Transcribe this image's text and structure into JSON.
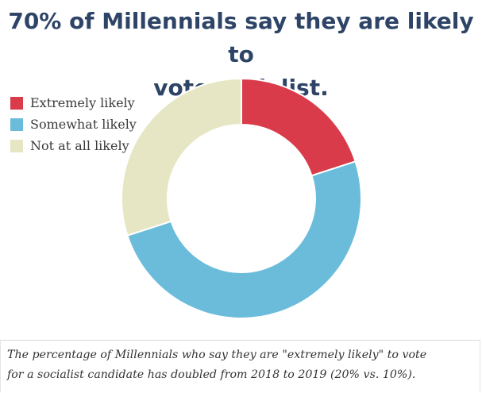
{
  "header": {
    "title_line1": "70% of Millennials say they are likely to",
    "title_line2": "vote socialist."
  },
  "chart_data": {
    "type": "pie",
    "variant": "donut",
    "categories": [
      "Extremely likely",
      "Somewhat likely",
      "Not at all likely"
    ],
    "values": [
      20,
      50,
      30
    ],
    "colors": [
      "#d93b4b",
      "#6bbcdb",
      "#e6e6c4"
    ],
    "legend_position": "top-left"
  },
  "caption": {
    "line1": "The percentage of Millennials who say they are \"extremely likely\" to vote",
    "line2": "for a socialist candidate has doubled from 2018 to 2019 (20% vs. 10%)."
  }
}
